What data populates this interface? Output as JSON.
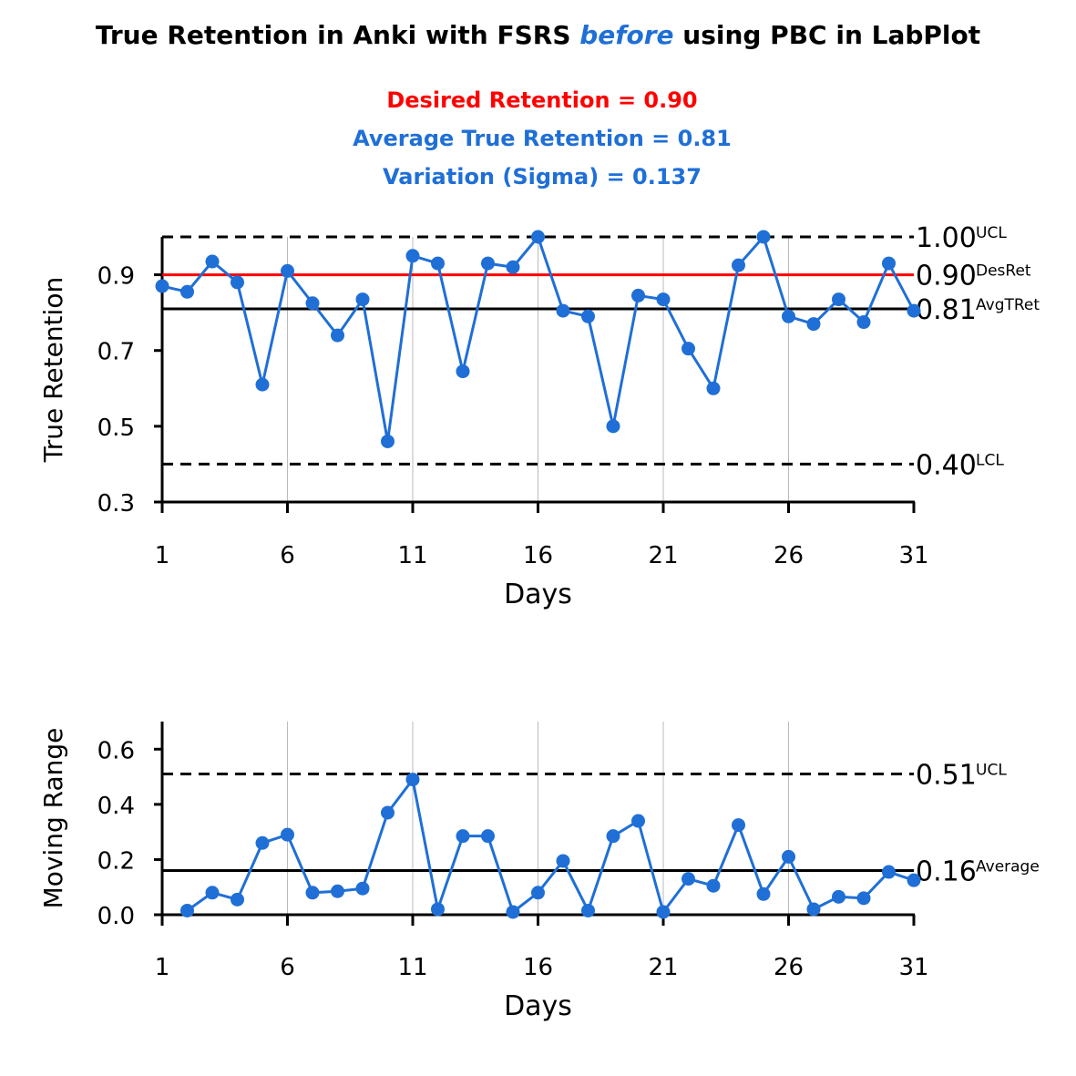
{
  "title": {
    "prefix": "True Retention in Anki with FSRS ",
    "emphasis": "before",
    "suffix": " using PBC in LabPlot"
  },
  "stats": {
    "desired": "Desired Retention = 0.90",
    "average": "Average True Retention = 0.81",
    "sigma": "Variation (Sigma) = 0.137"
  },
  "colors": {
    "series": "#1f6fd6",
    "desired_line": "#ff0000",
    "desired_text": "#ff0000",
    "average_line": "#000000",
    "limit_line": "#000000",
    "grid": "#bbbbbb"
  },
  "chart_data": [
    {
      "type": "line",
      "x_tick_labels": [
        "1",
        "6",
        "11",
        "16",
        "21",
        "26",
        "31"
      ],
      "y_tick_labels": [
        "0.3",
        "0.5",
        "0.7",
        "0.9"
      ],
      "xlabel": "Days",
      "ylabel": "True Retention",
      "xlim": [
        1,
        31
      ],
      "ylim": [
        0.3,
        1.0
      ],
      "x_ticks": [
        1,
        6,
        11,
        16,
        21,
        26,
        31
      ],
      "y_ticks": [
        0.3,
        0.5,
        0.7,
        0.9
      ],
      "vertical_grid": true,
      "x": [
        1,
        2,
        3,
        4,
        5,
        6,
        7,
        8,
        9,
        10,
        11,
        12,
        13,
        14,
        15,
        16,
        17,
        18,
        19,
        20,
        21,
        22,
        23,
        24,
        25,
        26,
        27,
        28,
        29,
        30,
        31
      ],
      "values": [
        0.87,
        0.855,
        0.935,
        0.88,
        0.61,
        0.91,
        0.825,
        0.74,
        0.835,
        0.46,
        0.95,
        0.93,
        0.645,
        0.93,
        0.92,
        1.0,
        0.805,
        0.79,
        0.5,
        0.845,
        0.835,
        0.705,
        0.6,
        0.925,
        1.0,
        0.79,
        0.77,
        0.835,
        0.775,
        0.93,
        0.805
      ],
      "reference_lines": [
        {
          "value": 1.0,
          "style": "dashed",
          "value_label": "1.00",
          "tag": "UCL",
          "color": "#000000"
        },
        {
          "value": 0.9,
          "style": "solid",
          "value_label": "0.90",
          "tag": "DesRet",
          "color": "#ff0000"
        },
        {
          "value": 0.81,
          "style": "solid",
          "value_label": "0.81",
          "tag": "AvgTRet",
          "color": "#000000"
        },
        {
          "value": 0.4,
          "style": "dashed",
          "value_label": "0.40",
          "tag": "LCL",
          "color": "#000000"
        }
      ]
    },
    {
      "type": "line",
      "x_tick_labels": [
        "1",
        "6",
        "11",
        "16",
        "21",
        "26",
        "31"
      ],
      "y_tick_labels": [
        "0.0",
        "0.2",
        "0.4",
        "0.6"
      ],
      "xlabel": "Days",
      "ylabel": "Moving Range",
      "xlim": [
        1,
        31
      ],
      "ylim": [
        0.0,
        0.7
      ],
      "x_ticks": [
        1,
        6,
        11,
        16,
        21,
        26,
        31
      ],
      "y_ticks": [
        0.0,
        0.2,
        0.4,
        0.6
      ],
      "vertical_grid": true,
      "x": [
        2,
        3,
        4,
        5,
        6,
        7,
        8,
        9,
        10,
        11,
        12,
        13,
        14,
        15,
        16,
        17,
        18,
        19,
        20,
        21,
        22,
        23,
        24,
        25,
        26,
        27,
        28,
        29,
        30,
        31
      ],
      "values": [
        0.015,
        0.08,
        0.055,
        0.26,
        0.29,
        0.08,
        0.085,
        0.095,
        0.37,
        0.49,
        0.02,
        0.285,
        0.285,
        0.01,
        0.08,
        0.195,
        0.015,
        0.285,
        0.34,
        0.01,
        0.13,
        0.105,
        0.325,
        0.075,
        0.21,
        0.02,
        0.065,
        0.06,
        0.155,
        0.125
      ],
      "reference_lines": [
        {
          "value": 0.51,
          "style": "dashed",
          "value_label": "0.51",
          "tag": "UCL",
          "color": "#000000"
        },
        {
          "value": 0.16,
          "style": "solid",
          "value_label": "0.16",
          "tag": "Average",
          "color": "#000000"
        }
      ]
    }
  ]
}
